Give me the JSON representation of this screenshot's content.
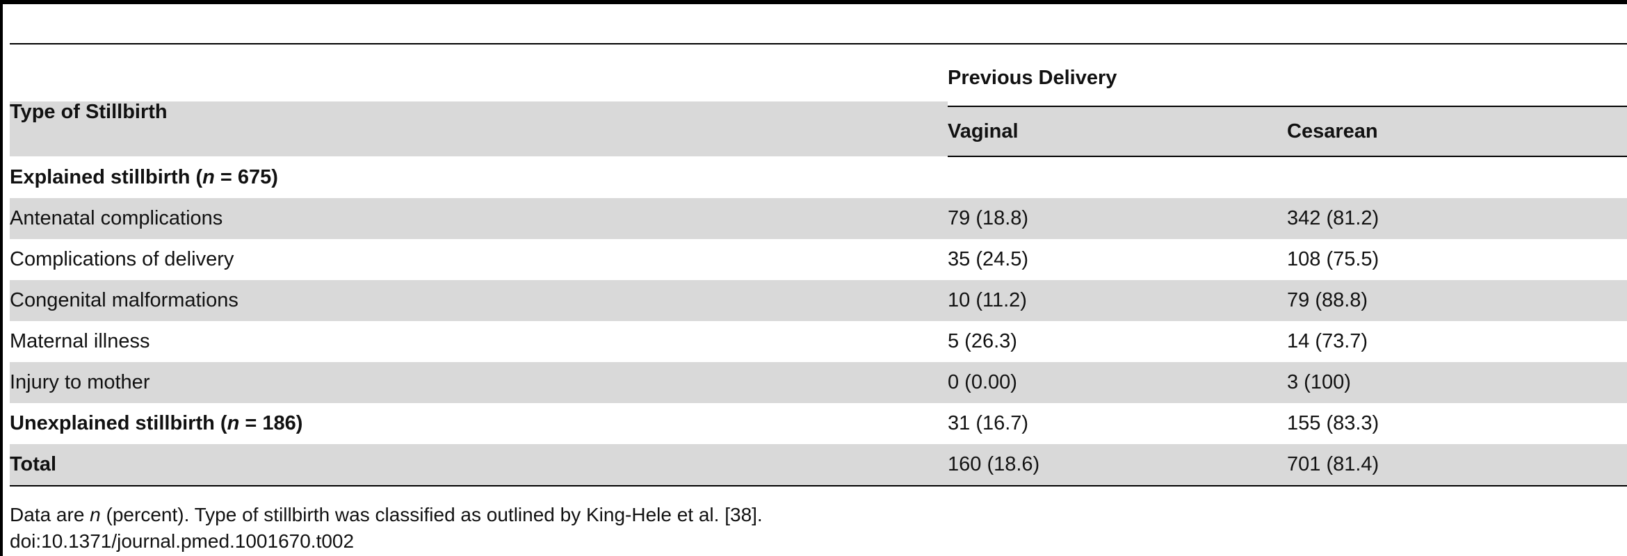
{
  "table": {
    "header": {
      "type_col": "Type of Stillbirth",
      "group_label": "Previous Delivery",
      "col_vaginal": "Vaginal",
      "col_cesarean": "Cesarean"
    },
    "sections": {
      "explained_prefix": "Explained stillbirth (",
      "explained_n_var": "n",
      "explained_n_value": " = 675)"
    },
    "rows": [
      {
        "label": "Antenatal complications",
        "vaginal": "79 (18.8)",
        "cesarean": "342 (81.2)"
      },
      {
        "label": "Complications of delivery",
        "vaginal": "35 (24.5)",
        "cesarean": "108 (75.5)"
      },
      {
        "label": "Congenital malformations",
        "vaginal": "10 (11.2)",
        "cesarean": "79 (88.8)"
      },
      {
        "label": "Maternal illness",
        "vaginal": "5 (26.3)",
        "cesarean": "14 (73.7)"
      },
      {
        "label": "Injury to mother",
        "vaginal": "0 (0.00)",
        "cesarean": "3 (100)"
      }
    ],
    "unexplained": {
      "prefix": "Unexplained stillbirth (",
      "n_var": "n",
      "n_value": " = 186)",
      "vaginal": "31 (16.7)",
      "cesarean": "155 (83.3)"
    },
    "total": {
      "label": "Total",
      "vaginal": "160 (18.6)",
      "cesarean": "701 (81.4)"
    }
  },
  "footnote": {
    "prefix": "Data are ",
    "n_var": "n",
    "suffix": " (percent). Type of stillbirth was classified as outlined by King-Hele et al. [38].",
    "doi": "doi:10.1371/journal.pmed.1001670.t002"
  }
}
